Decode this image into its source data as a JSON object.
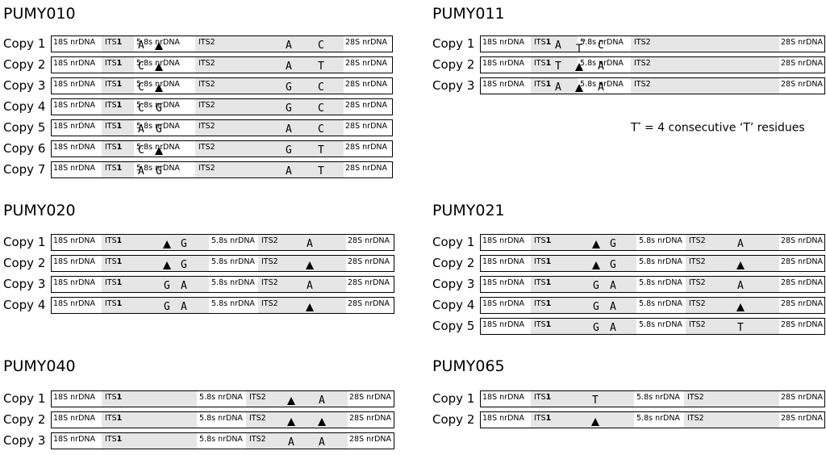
{
  "regions": {
    "r18s": "18S nrDNA",
    "its1_prefix": "ITS",
    "its1_num": "1",
    "r58s": "5.8s nrDNA",
    "its2": "ITS2",
    "r28s": "28S nrDNA"
  },
  "note": {
    "t": "T",
    "star": "*",
    "text": " = 4 consecutive ‘T’ residues"
  },
  "panels": [
    {
      "id": "pumy010",
      "title": "PUMY010",
      "copies": [
        {
          "label": "Copy 1",
          "its1": [
            "A",
            "▲"
          ],
          "its2": [
            "A",
            "C"
          ]
        },
        {
          "label": "Copy 2",
          "its1": [
            "C",
            "▲"
          ],
          "its2": [
            "A",
            "T"
          ]
        },
        {
          "label": "Copy 3",
          "its1": [
            "C",
            "▲"
          ],
          "its2": [
            "G",
            "C"
          ]
        },
        {
          "label": "Copy 4",
          "its1": [
            "C",
            "G"
          ],
          "its2": [
            "G",
            "C"
          ]
        },
        {
          "label": "Copy 5",
          "its1": [
            "A",
            "G"
          ],
          "its2": [
            "A",
            "C"
          ]
        },
        {
          "label": "Copy 6",
          "its1": [
            "C",
            "▲"
          ],
          "its2": [
            "G",
            "T"
          ]
        },
        {
          "label": "Copy 7",
          "its1": [
            "A",
            "G"
          ],
          "its2": [
            "A",
            "T"
          ]
        }
      ]
    },
    {
      "id": "pumy011",
      "title": "PUMY011",
      "copies": [
        {
          "label": "Copy 1",
          "its1": [
            "A",
            "T*",
            "C"
          ],
          "its2": []
        },
        {
          "label": "Copy 2",
          "its1": [
            "T",
            "▲",
            "A"
          ],
          "its2": []
        },
        {
          "label": "Copy 3",
          "its1": [
            "A",
            "▲",
            "A"
          ],
          "its2": []
        }
      ]
    },
    {
      "id": "pumy020",
      "title": "PUMY020",
      "copies": [
        {
          "label": "Copy 1",
          "its1": [
            "▲",
            "G"
          ],
          "its2": [
            "A"
          ]
        },
        {
          "label": "Copy 2",
          "its1": [
            "▲",
            "G"
          ],
          "its2": [
            "▲"
          ]
        },
        {
          "label": "Copy 3",
          "its1": [
            "G",
            "A"
          ],
          "its2": [
            "A"
          ]
        },
        {
          "label": "Copy 4",
          "its1": [
            "G",
            "A"
          ],
          "its2": [
            "▲"
          ]
        }
      ]
    },
    {
      "id": "pumy021",
      "title": "PUMY021",
      "copies": [
        {
          "label": "Copy 1",
          "its1": [
            "▲",
            "G"
          ],
          "its2": [
            "A"
          ]
        },
        {
          "label": "Copy 2",
          "its1": [
            "▲",
            "G"
          ],
          "its2": [
            "▲"
          ]
        },
        {
          "label": "Copy 3",
          "its1": [
            "G",
            "A"
          ],
          "its2": [
            "A"
          ]
        },
        {
          "label": "Copy 4",
          "its1": [
            "G",
            "A"
          ],
          "its2": [
            "▲"
          ]
        },
        {
          "label": "Copy 5",
          "its1": [
            "G",
            "A"
          ],
          "its2": [
            "T"
          ]
        }
      ]
    },
    {
      "id": "pumy040",
      "title": "PUMY040",
      "copies": [
        {
          "label": "Copy 1",
          "its1": [],
          "its2": [
            "▲",
            "A"
          ]
        },
        {
          "label": "Copy 2",
          "its1": [],
          "its2": [
            "▲",
            "▲"
          ]
        },
        {
          "label": "Copy 3",
          "its1": [],
          "its2": [
            "A",
            "A"
          ]
        }
      ]
    },
    {
      "id": "pumy065",
      "title": "PUMY065",
      "copies": [
        {
          "label": "Copy 1",
          "its1": [
            "T"
          ],
          "its2": []
        },
        {
          "label": "Copy 2",
          "its1": [
            "▲"
          ],
          "its2": []
        }
      ]
    }
  ]
}
